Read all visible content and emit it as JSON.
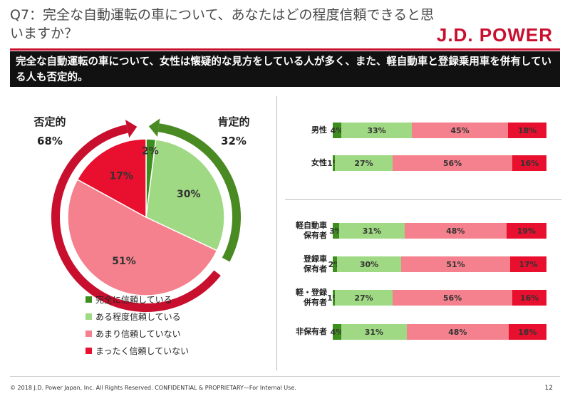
{
  "header": {
    "title": "Q7：完全な自動運転の車について、あなたはどの程度信頼できると思いますか？",
    "logo": "J.D. POWER"
  },
  "banner": {
    "text": "完全な自動運転の車について、女性は懐疑的な見方をしている人が多く、また、軽自動車と登録乗用車を併有している人も否定的。"
  },
  "negative": {
    "label": "否定的",
    "pct": "68%"
  },
  "positive": {
    "label": "肯定的",
    "pct": "32%"
  },
  "colors": {
    "full_trust": "#3e8e1f",
    "some_trust": "#9fd983",
    "little_trust": "#f4818d",
    "no_trust": "#e8102e",
    "negative_arrow": "#c8102e",
    "positive_arrow": "#4a8a22"
  },
  "chart_data": [
    {
      "type": "pie",
      "categories": [
        "完全に信頼している",
        "ある程度信頼している",
        "あまり信頼していない",
        "まったく信頼していない"
      ],
      "values": [
        2,
        30,
        51,
        17
      ],
      "labels": [
        "2%",
        "30%",
        "51%",
        "17%"
      ]
    },
    {
      "type": "bar",
      "stacked": true,
      "horizontal": true,
      "categories": [
        "男性",
        "女性",
        "軽自動車保有者",
        "登録車保有者",
        "軽・登録併有者",
        "非保有者"
      ],
      "display_categories": [
        [
          "男性"
        ],
        [
          "女性"
        ],
        [
          "軽自動車",
          "保有者"
        ],
        [
          "登録車",
          "保有者"
        ],
        [
          "軽・登録",
          "併有者"
        ],
        [
          "非保有者"
        ]
      ],
      "series": [
        {
          "name": "完全に信頼している",
          "values": [
            4,
            1,
            3,
            2,
            1,
            4
          ]
        },
        {
          "name": "ある程度信頼している",
          "values": [
            33,
            27,
            31,
            30,
            27,
            31
          ]
        },
        {
          "name": "あまり信頼していない",
          "values": [
            45,
            56,
            48,
            51,
            56,
            48
          ]
        },
        {
          "name": "まったく信頼していない",
          "values": [
            18,
            16,
            19,
            17,
            16,
            18
          ]
        }
      ]
    }
  ],
  "footer": {
    "copyright": "© 2018 J.D. Power Japan, Inc. All Rights Reserved. CONFIDENTIAL & PROPRIETARY—For Internal Use.",
    "page": "12"
  }
}
